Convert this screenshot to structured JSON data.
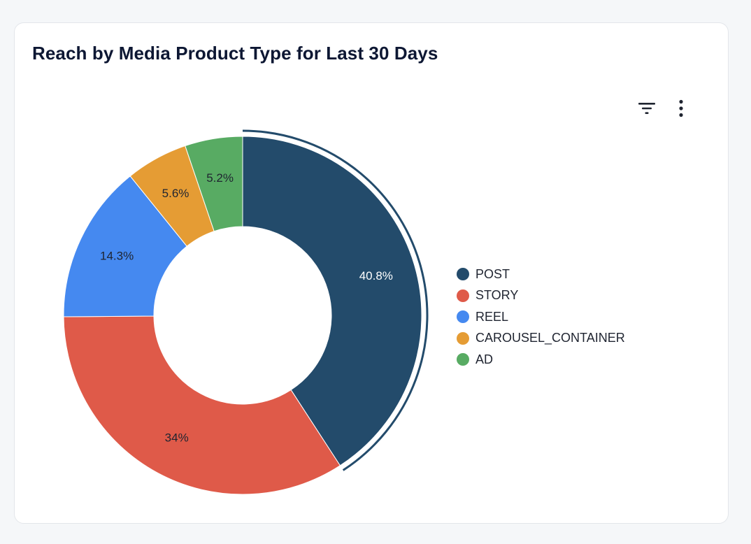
{
  "card": {
    "title": "Reach by Media Product Type for Last 30 Days"
  },
  "toolbar": {
    "filter_icon": "filter-icon",
    "more_icon": "more-vertical-icon"
  },
  "chart_data": {
    "type": "pie",
    "donut": true,
    "highlighted": "POST",
    "legend_position": "right",
    "categories": [
      "POST",
      "STORY",
      "REEL",
      "CAROUSEL_CONTAINER",
      "AD"
    ],
    "values": [
      40.8,
      34,
      14.3,
      5.6,
      5.2
    ],
    "labels": [
      "40.8%",
      "34%",
      "14.3%",
      "5.6%",
      "5.2%"
    ],
    "colors": [
      "#234b6b",
      "#df5a49",
      "#4589f0",
      "#e59c34",
      "#58ab63"
    ],
    "label_colors": [
      "#ffffff",
      "#1f2430",
      "#1f2430",
      "#1f2430",
      "#1f2430"
    ]
  }
}
